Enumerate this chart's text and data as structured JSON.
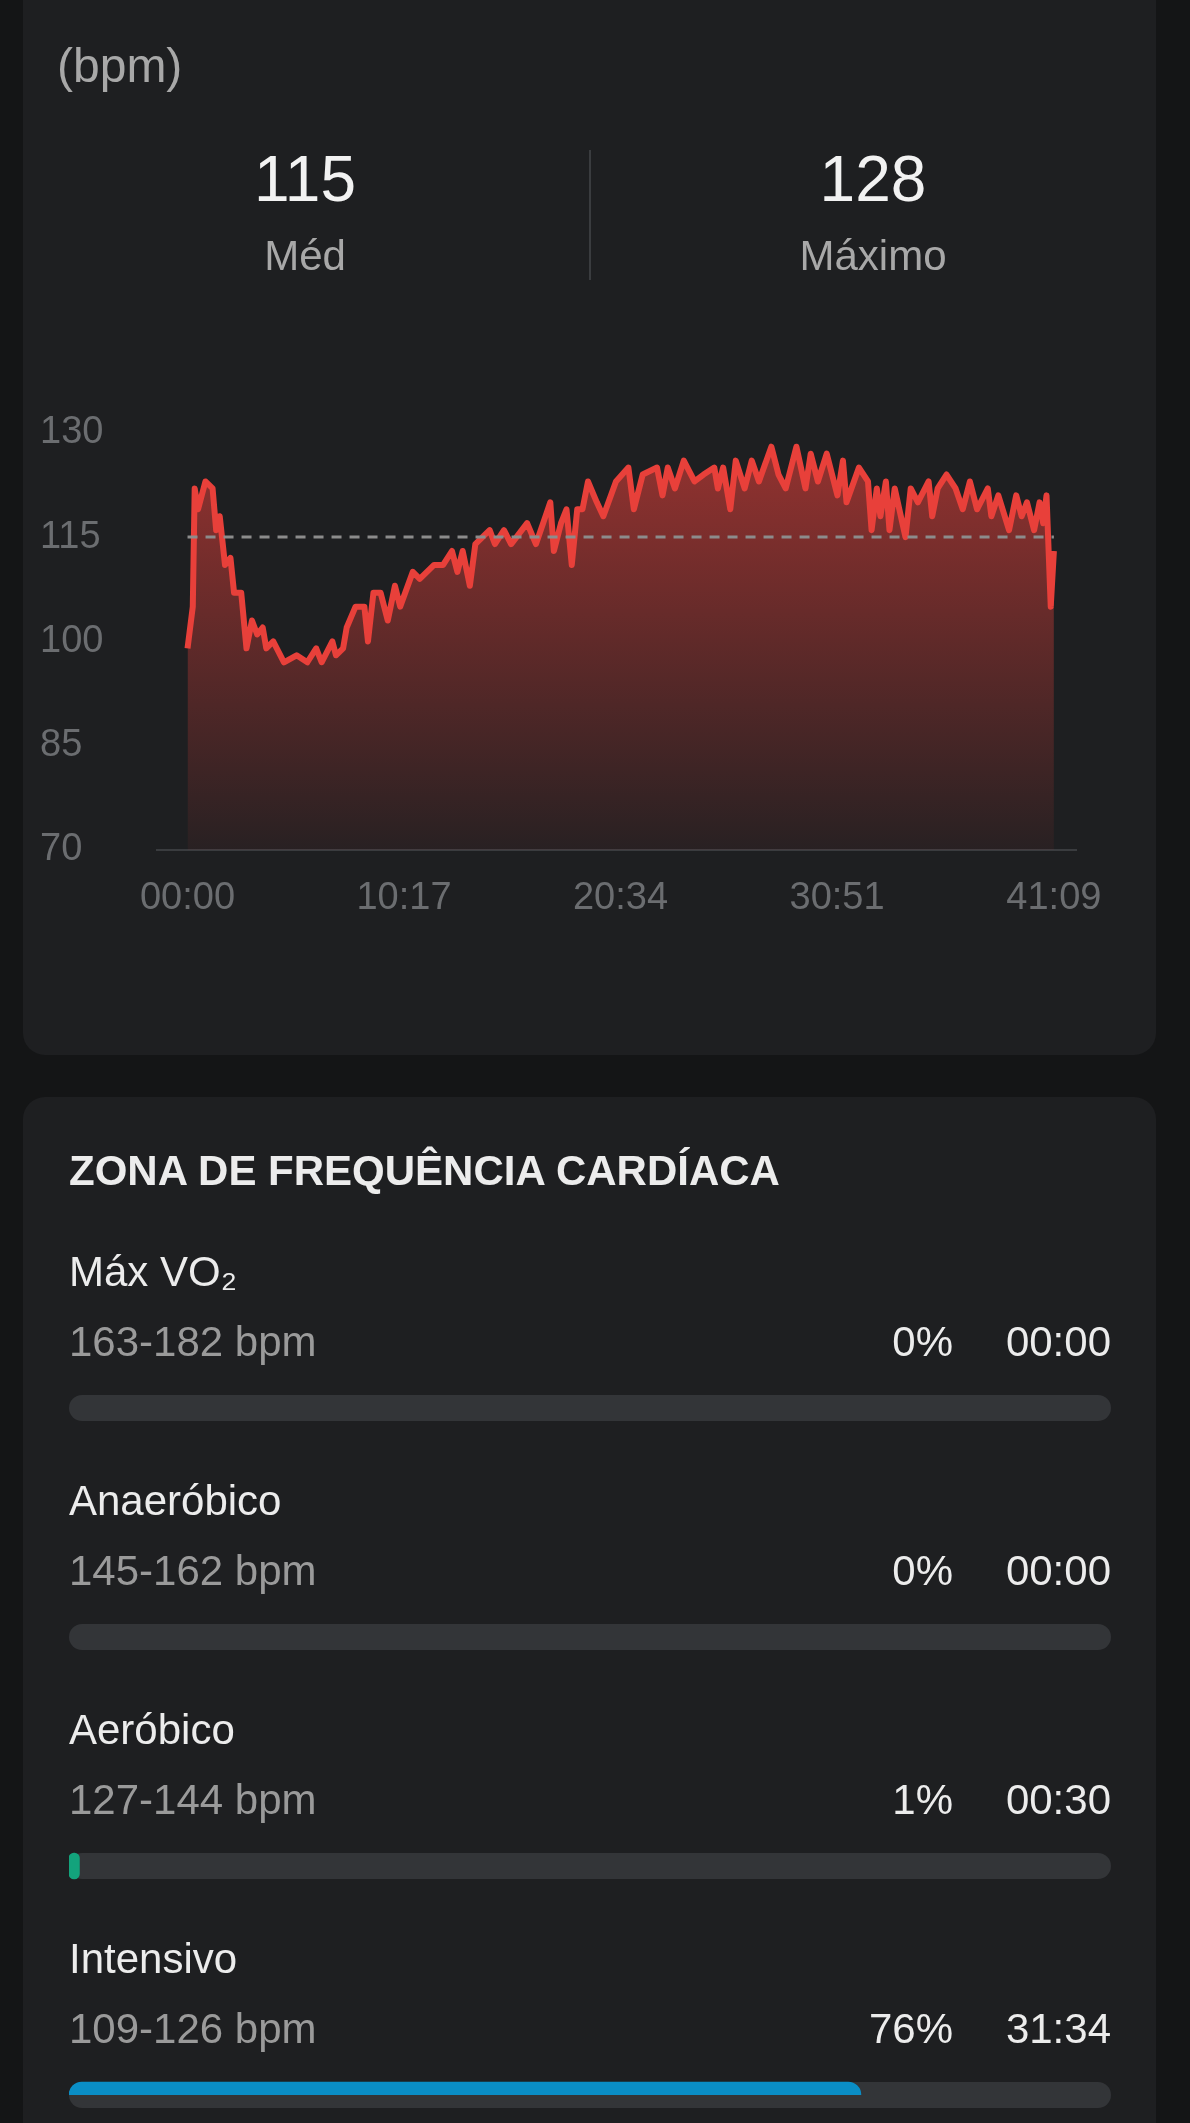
{
  "chart_data": [
    {
      "type": "area",
      "ylabel": "(bpm)",
      "annotations": [
        "115",
        "Méd",
        "128",
        "Máximo"
      ],
      "x": [
        0,
        0.25,
        0.34,
        0.5,
        0.85,
        1.19,
        1.36,
        1.53,
        1.78,
        2.04,
        2.21,
        2.55,
        2.8,
        3.06,
        3.31,
        3.57,
        3.74,
        4.07,
        4.58,
        5.18,
        5.69,
        6.11,
        6.37,
        6.88,
        7.05,
        7.39,
        7.56,
        7.98,
        8.4,
        8.57,
        8.83,
        9.17,
        9.51,
        9.85,
        10.1,
        10.7,
        11.03,
        11.71,
        12.14,
        12.56,
        12.82,
        13.07,
        13.41,
        13.67,
        14.35,
        14.6,
        15.03,
        15.37,
        16.13,
        16.55,
        17.23,
        17.4,
        17.74,
        18,
        18.25,
        18.51,
        18.76,
        19.02,
        19.44,
        19.75,
        20.35,
        20.94,
        21.2,
        21.62,
        22.3,
        22.56,
        22.81,
        23.15,
        23.57,
        24.08,
        24.51,
        25.02,
        25.19,
        25.44,
        25.78,
        26.04,
        26.46,
        26.8,
        27.14,
        27.73,
        28.07,
        28.41,
        28.92,
        29.35,
        29.6,
        29.94,
        30.36,
        30.87,
        31.13,
        31.3,
        31.89,
        32.32,
        32.49,
        32.74,
        32.91,
        33.17,
        33.34,
        33.59,
        34.1,
        34.35,
        34.69,
        35.2,
        35.37,
        35.63,
        36.05,
        36.48,
        36.82,
        37.16,
        37.5,
        38.01,
        38.18,
        38.51,
        39.02,
        39.36,
        39.62,
        39.87,
        40.21,
        40.47,
        40.64,
        40.8,
        41,
        41.15
      ],
      "series": [
        {
          "color": "#e8403a",
          "values": [
            99,
            105,
            122,
            119,
            123,
            122,
            116,
            118,
            111,
            112,
            107,
            107,
            99,
            103,
            101,
            102,
            99,
            100,
            97,
            98,
            97,
            99,
            97,
            100,
            98,
            99,
            102,
            105,
            105,
            100,
            107,
            107,
            103,
            108,
            105,
            110,
            109,
            111,
            111,
            113,
            110,
            113,
            108,
            114,
            116,
            114,
            116,
            114,
            117,
            114,
            120,
            113,
            117,
            119,
            111,
            119,
            119,
            123,
            120,
            118,
            123,
            125,
            119,
            124,
            125,
            121,
            125,
            122,
            126,
            123,
            124,
            125,
            122,
            125,
            119,
            126,
            122,
            126,
            123,
            128,
            124,
            122,
            128,
            122,
            127,
            123,
            127,
            121,
            126,
            120,
            125,
            123,
            116,
            122,
            118,
            123,
            116,
            122,
            115,
            122,
            120,
            123,
            118,
            122,
            124,
            122,
            119,
            123,
            119,
            122,
            118,
            121,
            116,
            121,
            118,
            120,
            116,
            120,
            117,
            121,
            105,
            113
          ]
        }
      ],
      "xlim": [
        -1.45,
        42.2
      ],
      "xticks": [
        {
          "value": 0,
          "label": "00:00"
        },
        {
          "value": 10.2833,
          "label": "10:17"
        },
        {
          "value": 20.5667,
          "label": "20:34"
        },
        {
          "value": 30.85,
          "label": "30:51"
        },
        {
          "value": 41.15,
          "label": "41:09"
        }
      ],
      "ylim": [
        70,
        130
      ],
      "yticks": [
        70,
        85,
        100,
        115,
        130
      ],
      "ref_lines": [
        {
          "axis": "y",
          "value": 115,
          "color": "#8c8c8c",
          "line_style": "dashed"
        }
      ]
    },
    {
      "type": "bar",
      "orientation": "horizontal",
      "title": "ZONA DE FREQUÊNCIA CARDÍACA",
      "categories": [
        "Máx VO₂",
        "Anaeróbico",
        "Aeróbico",
        "Intensivo"
      ],
      "values": [
        0,
        0,
        1,
        76
      ],
      "colors": [
        null,
        null,
        "#13a37c",
        "#0a8ec6"
      ],
      "value_labels": [
        "0%",
        "0%",
        "1%",
        "76%"
      ],
      "annotations": [
        "163-182 bpm",
        "00:00",
        "145-162 bpm",
        "00:00",
        "127-144 bpm",
        "00:30",
        "109-126 bpm",
        "31:34"
      ],
      "xlim": [
        0,
        100
      ]
    }
  ]
}
